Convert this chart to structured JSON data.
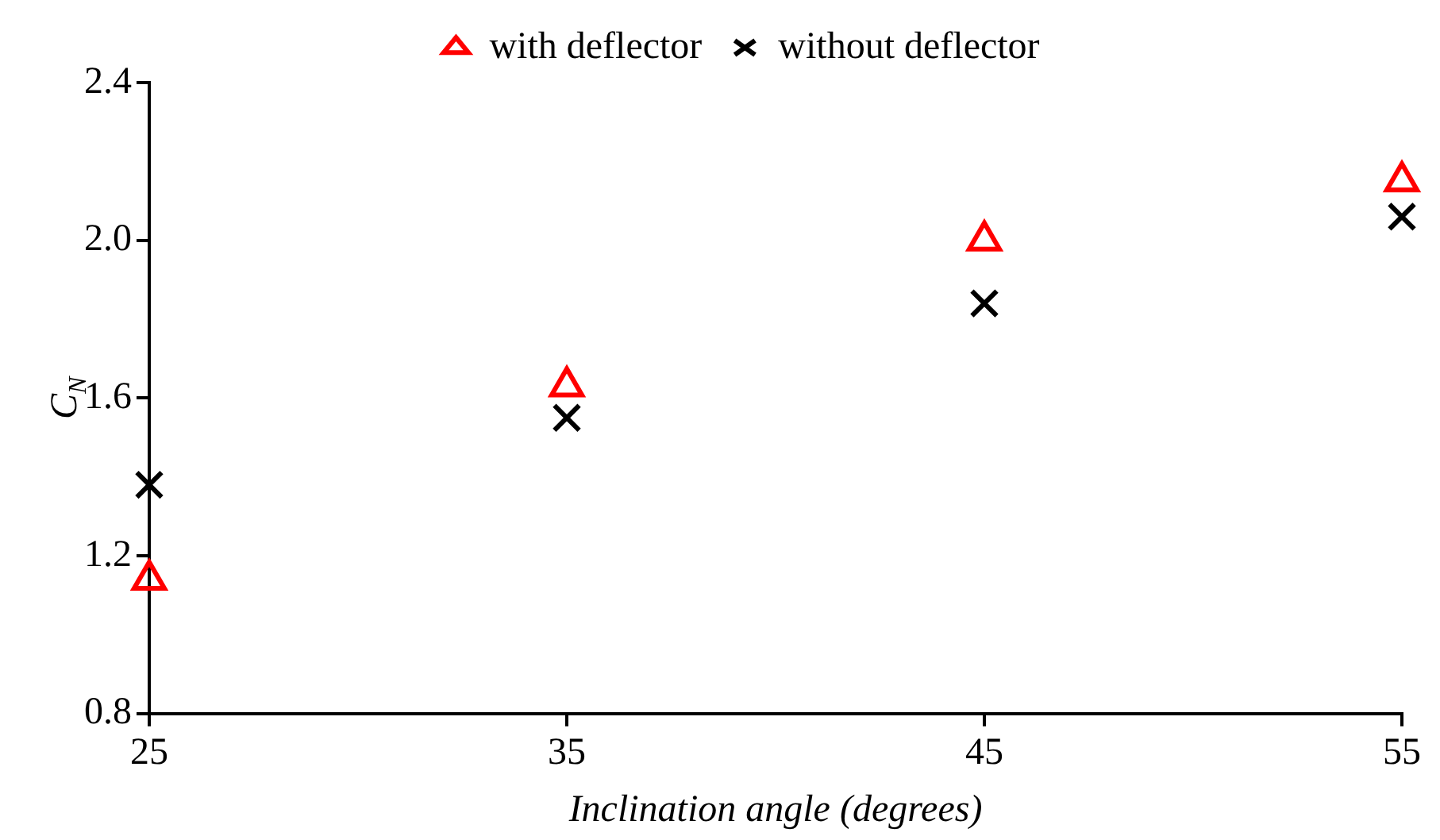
{
  "chart_data": {
    "type": "scatter",
    "xlabel": "Inclination angle (degrees)",
    "ylabel": "C$_{N}$",
    "x": [
      25,
      35,
      45,
      55
    ],
    "series": [
      {
        "name": "with deflector",
        "color": "#ff0000",
        "marker": "triangle",
        "values": [
          1.14,
          1.63,
          2.0,
          2.15
        ]
      },
      {
        "name": "without deflector",
        "color": "#000000",
        "marker": "cross",
        "values": [
          1.38,
          1.55,
          1.84,
          2.06
        ]
      }
    ],
    "xlim": [
      25,
      55
    ],
    "xticks": [
      25,
      35,
      45,
      55
    ],
    "ylim": [
      0.8,
      2.4
    ],
    "yticks": [
      0.8,
      1.2,
      1.6,
      {
        "value": 2,
        "label": "2.0"
      },
      2.4
    ],
    "grid": false,
    "legend": "top"
  }
}
